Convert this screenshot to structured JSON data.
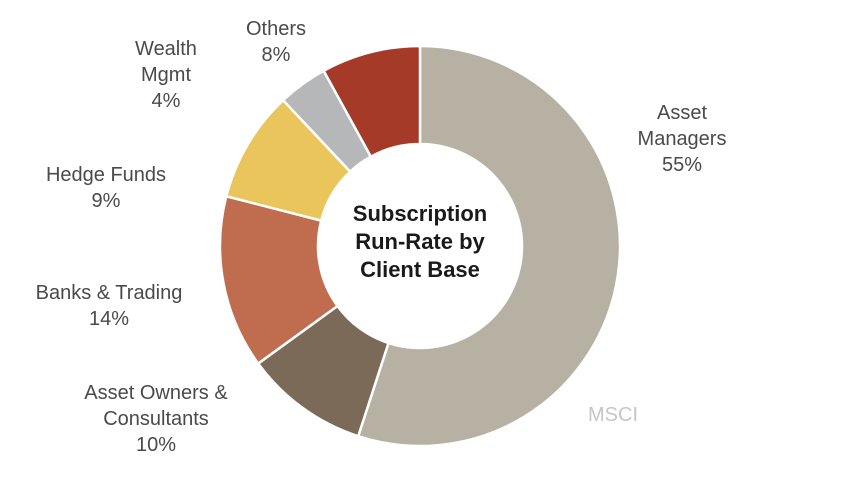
{
  "chart_data": {
    "type": "pie",
    "donut": true,
    "center_title": [
      "Subscription",
      "Run-Rate by",
      "Client Base"
    ],
    "categories": [
      "Asset Managers",
      "Asset Owners & Consultants",
      "Banks & Trading",
      "Hedge Funds",
      "Wealth Mgmt",
      "Others"
    ],
    "values": [
      55,
      10,
      14,
      9,
      4,
      8
    ],
    "unit": "%",
    "colors": [
      "#b7b1a3",
      "#7b6a58",
      "#c06d4f",
      "#eac55c",
      "#b5b7b9",
      "#a63a29"
    ],
    "labels": [
      {
        "lines": [
          "Asset",
          "Managers"
        ],
        "value": "55%"
      },
      {
        "lines": [
          "Asset Owners &",
          "Consultants"
        ],
        "value": "10%"
      },
      {
        "lines": [
          "Banks & Trading"
        ],
        "value": "14%"
      },
      {
        "lines": [
          "Hedge Funds"
        ],
        "value": "9%"
      },
      {
        "lines": [
          "Wealth",
          "Mgmt"
        ],
        "value": "4%"
      },
      {
        "lines": [
          "Others"
        ],
        "value": "8%"
      }
    ],
    "watermark": "MSCI"
  }
}
